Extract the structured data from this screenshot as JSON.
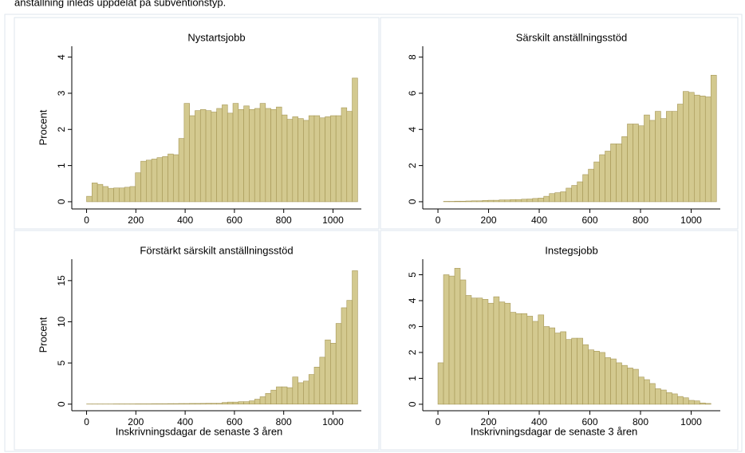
{
  "caption": "anställning inleds uppdelat på subventionstyp.",
  "chart_data": [
    {
      "type": "histogram",
      "title": "Nystartsjobb",
      "ylabel": "Procent",
      "color": "#d3c98f",
      "bins": [
        0,
        22,
        44,
        66,
        88,
        110,
        132,
        154,
        176,
        198,
        220,
        242,
        264,
        286,
        308,
        330,
        352,
        374,
        396,
        418,
        440,
        462,
        484,
        506,
        528,
        550,
        572,
        594,
        616,
        638,
        660,
        682,
        704,
        726,
        748,
        770,
        792,
        814,
        836,
        858,
        880,
        902,
        924,
        946,
        968,
        990,
        1012,
        1034,
        1056,
        1078,
        1100
      ],
      "values": [
        0.15,
        0.52,
        0.48,
        0.42,
        0.37,
        0.38,
        0.38,
        0.4,
        0.42,
        0.8,
        1.12,
        1.15,
        1.18,
        1.22,
        1.25,
        1.32,
        1.3,
        1.75,
        2.72,
        2.38,
        2.52,
        2.55,
        2.52,
        2.48,
        2.58,
        2.68,
        2.45,
        2.72,
        2.55,
        2.65,
        2.55,
        2.58,
        2.72,
        2.58,
        2.55,
        2.62,
        2.4,
        2.28,
        2.35,
        2.3,
        2.25,
        2.38,
        2.38,
        2.32,
        2.35,
        2.38,
        2.38,
        2.6,
        2.5,
        3.42
      ],
      "xlim": [
        -60,
        1115
      ],
      "xticks": [
        0,
        200,
        400,
        600,
        800,
        1000
      ],
      "ylim": [
        -0.2,
        4.3
      ],
      "yticks": [
        0,
        1,
        2,
        3,
        4
      ]
    },
    {
      "type": "histogram",
      "title": "Särskilt anställningsstöd",
      "color": "#d3c98f",
      "bins": [
        0,
        22,
        44,
        66,
        88,
        110,
        132,
        154,
        176,
        198,
        220,
        242,
        264,
        286,
        308,
        330,
        352,
        374,
        396,
        418,
        440,
        462,
        484,
        506,
        528,
        550,
        572,
        594,
        616,
        638,
        660,
        682,
        704,
        726,
        748,
        770,
        792,
        814,
        836,
        858,
        880,
        902,
        924,
        946,
        968,
        990,
        1012,
        1034,
        1056,
        1078,
        1100
      ],
      "values": [
        0,
        0.02,
        0.02,
        0.03,
        0.03,
        0.04,
        0.05,
        0.05,
        0.07,
        0.08,
        0.08,
        0.1,
        0.1,
        0.12,
        0.12,
        0.14,
        0.15,
        0.18,
        0.2,
        0.3,
        0.45,
        0.5,
        0.55,
        0.75,
        0.9,
        1.1,
        1.5,
        1.8,
        2.2,
        2.6,
        2.8,
        3.2,
        3.2,
        3.6,
        4.3,
        4.3,
        4.2,
        4.8,
        4.5,
        5.0,
        4.6,
        5.0,
        5.0,
        5.4,
        6.1,
        6.05,
        5.9,
        5.85,
        5.8,
        7.0
      ],
      "xlim": [
        -60,
        1115
      ],
      "xticks": [
        0,
        200,
        400,
        600,
        800,
        1000
      ],
      "ylim": [
        -0.4,
        8.6
      ],
      "yticks": [
        0,
        2,
        4,
        6,
        8
      ]
    },
    {
      "type": "histogram",
      "title": "Förstärkt särskilt anställningsstöd",
      "ylabel": "Procent",
      "xlabel": "Inskrivningsdagar de senaste 3 åren",
      "color": "#d3c98f",
      "bins": [
        0,
        22,
        44,
        66,
        88,
        110,
        132,
        154,
        176,
        198,
        220,
        242,
        264,
        286,
        308,
        330,
        352,
        374,
        396,
        418,
        440,
        462,
        484,
        506,
        528,
        550,
        572,
        594,
        616,
        638,
        660,
        682,
        704,
        726,
        748,
        770,
        792,
        814,
        836,
        858,
        880,
        902,
        924,
        946,
        968,
        990,
        1012,
        1034,
        1056,
        1078,
        1100
      ],
      "values": [
        0.02,
        0.02,
        0.02,
        0.02,
        0.02,
        0.03,
        0.03,
        0.03,
        0.03,
        0.04,
        0.04,
        0.04,
        0.05,
        0.05,
        0.05,
        0.06,
        0.06,
        0.07,
        0.07,
        0.08,
        0.08,
        0.09,
        0.1,
        0.1,
        0.1,
        0.2,
        0.25,
        0.25,
        0.3,
        0.3,
        0.4,
        0.6,
        0.9,
        1.3,
        1.7,
        2.1,
        2.1,
        2.0,
        3.3,
        2.6,
        2.8,
        3.6,
        4.5,
        5.7,
        7.8,
        7.4,
        9.8,
        11.7,
        12.6,
        16.2
      ],
      "xlim": [
        -60,
        1115
      ],
      "xticks": [
        0,
        200,
        400,
        600,
        800,
        1000
      ],
      "ylim": [
        -0.8,
        17.6
      ],
      "yticks": [
        0,
        5,
        10,
        15
      ]
    },
    {
      "type": "histogram",
      "title": "Instegsjobb",
      "xlabel": "Inskrivningsdagar de senaste 3 åren",
      "color": "#d3c98f",
      "bins": [
        0,
        22,
        44,
        66,
        88,
        110,
        132,
        154,
        176,
        198,
        220,
        242,
        264,
        286,
        308,
        330,
        352,
        374,
        396,
        418,
        440,
        462,
        484,
        506,
        528,
        550,
        572,
        594,
        616,
        638,
        660,
        682,
        704,
        726,
        748,
        770,
        792,
        814,
        836,
        858,
        880,
        902,
        924,
        946,
        968,
        990,
        1012,
        1034,
        1056,
        1078,
        1100
      ],
      "values": [
        1.6,
        5.0,
        4.95,
        5.25,
        4.8,
        4.2,
        4.1,
        4.1,
        4.05,
        3.9,
        4.15,
        3.95,
        3.9,
        3.55,
        3.5,
        3.5,
        3.4,
        3.2,
        3.45,
        3.0,
        2.95,
        2.75,
        2.8,
        2.5,
        2.55,
        2.55,
        2.3,
        2.1,
        2.05,
        2.0,
        1.8,
        1.75,
        1.6,
        1.5,
        1.4,
        1.35,
        1.05,
        0.95,
        0.8,
        0.6,
        0.55,
        0.45,
        0.4,
        0.3,
        0.25,
        0.15,
        0.13,
        0.05,
        0.03,
        0
      ],
      "xlim": [
        -60,
        1115
      ],
      "xticks": [
        0,
        200,
        400,
        600,
        800,
        1000
      ],
      "ylim": [
        -0.25,
        5.6
      ],
      "yticks": [
        0,
        1,
        2,
        3,
        4,
        5
      ]
    }
  ]
}
